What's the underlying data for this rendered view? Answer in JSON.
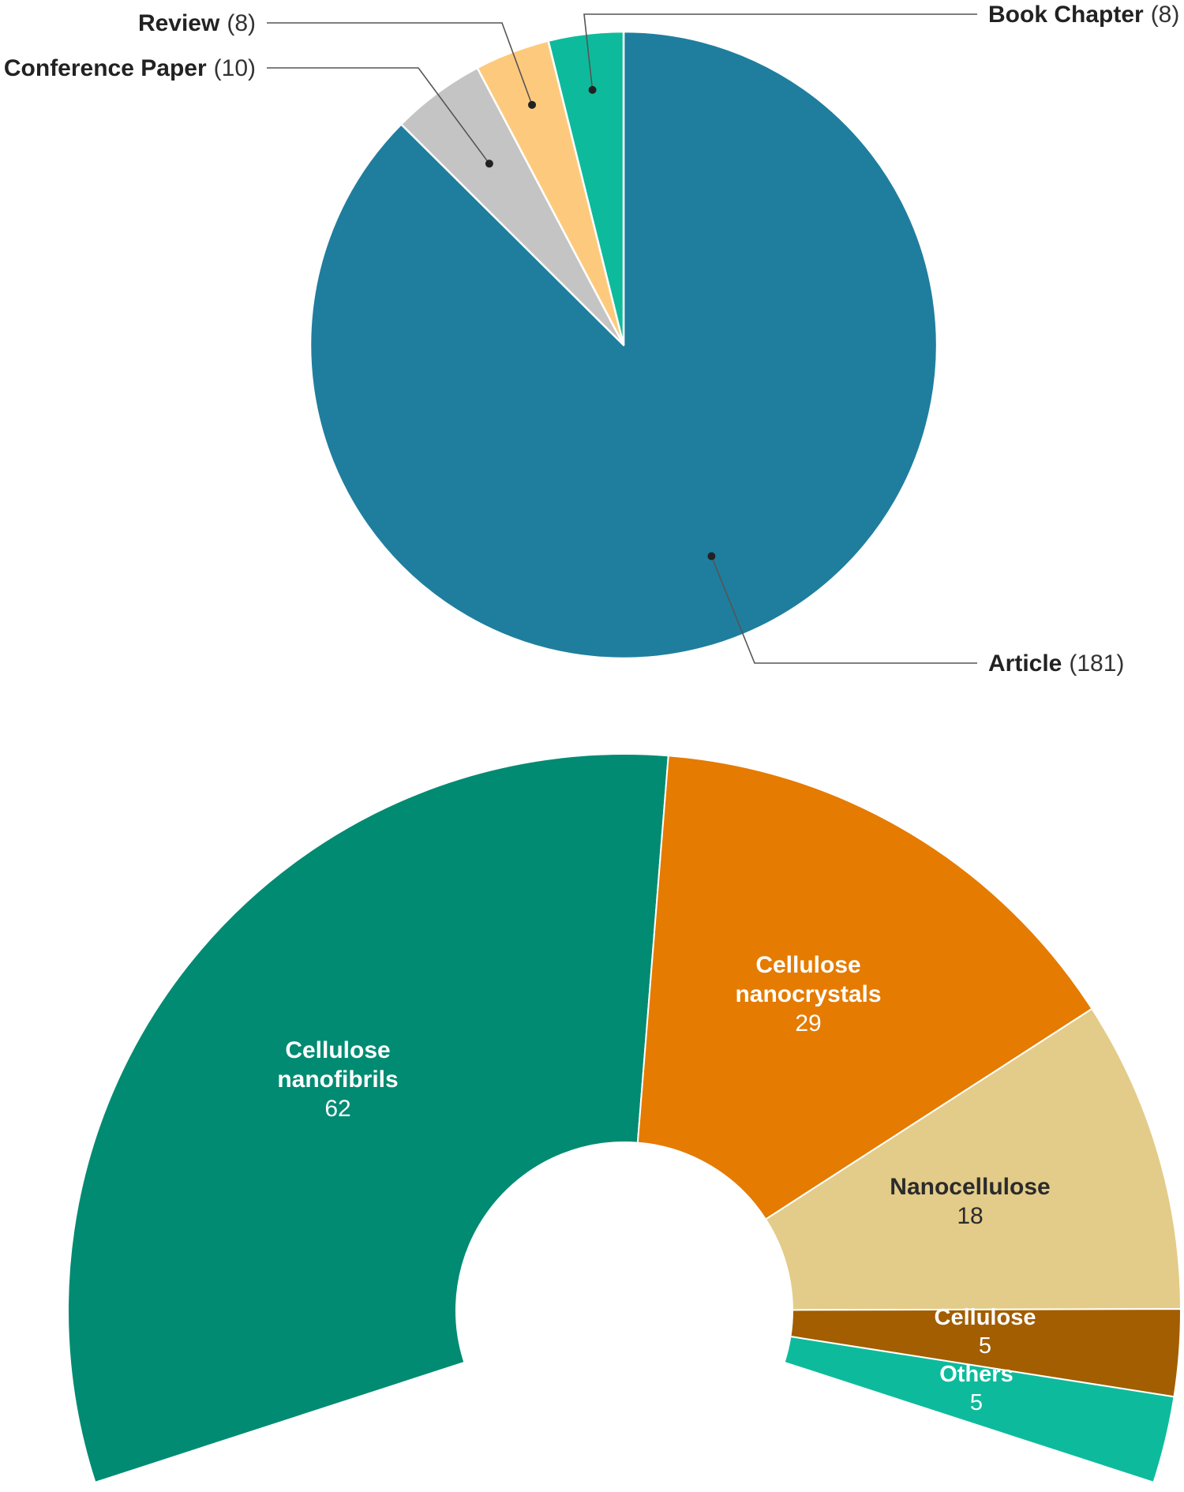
{
  "chart_data": [
    {
      "type": "pie",
      "slices": [
        {
          "name": "Article",
          "count_label": "(181)",
          "value": 181,
          "color": "#1f7e9e"
        },
        {
          "name": "Conference Paper",
          "count_label": "(10)",
          "value": 10,
          "color": "#c4c4c4"
        },
        {
          "name": "Review",
          "count_label": "(8)",
          "value": 8,
          "color": "#fdca7d"
        },
        {
          "name": "Book Chapter",
          "count_label": "(8)",
          "value": 8,
          "color": "#0dbb9c"
        }
      ]
    },
    {
      "type": "pie",
      "style": "partial donut",
      "slices": [
        {
          "name": "Cellulose nanofibrils",
          "value": 62,
          "color": "#008b72"
        },
        {
          "name": "Cellulose nanocrystals",
          "value": 29,
          "color": "#e57b00"
        },
        {
          "name": "Nanocellulose",
          "value": 18,
          "color": "#e3cc89"
        },
        {
          "name": "Cellulose",
          "value": 5,
          "color": "#a25e00"
        },
        {
          "name": "Others",
          "value": 5,
          "color": "#0dbb9c"
        }
      ]
    }
  ]
}
